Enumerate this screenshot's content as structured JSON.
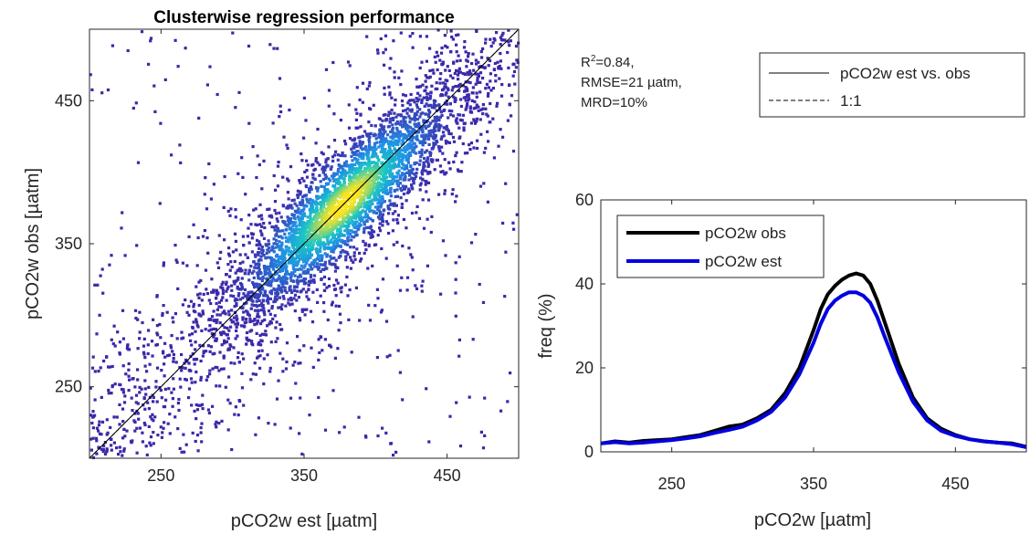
{
  "colors": {
    "scatter_low": "#3e26a8",
    "scatter_mid1": "#1f8fe6",
    "scatter_mid2": "#1ac7c2",
    "scatter_high": "#fbe51e",
    "obs_line": "#000000",
    "est_line": "#0000e0",
    "axis": "#262626"
  },
  "stats": {
    "r2_prefix": "R",
    "r2_sup": "2",
    "r2_suffix": "=0.84,",
    "rmse": "RMSE=21 µatm,",
    "mrd": "MRD=10%"
  },
  "chart_data": [
    {
      "type": "scatter",
      "title": "Clusterwise regression performance",
      "xlabel": "pCO2w est [µatm]",
      "ylabel": "pCO2w obs [µatm]",
      "xlim": [
        200,
        500
      ],
      "ylim": [
        200,
        500
      ],
      "xticks": [
        250,
        350,
        450
      ],
      "yticks": [
        250,
        350,
        450
      ],
      "density_colored": true,
      "density_center": [
        378,
        380
      ],
      "correlation": 0.84,
      "series": [
        {
          "name": "pCO2w est vs. obs",
          "kind": "line",
          "style": "solid",
          "x": [
            200,
            500
          ],
          "y": [
            200,
            500
          ]
        },
        {
          "name": "1:1",
          "kind": "line",
          "style": "dashed",
          "x": [
            200,
            500
          ],
          "y": [
            200,
            500
          ]
        }
      ],
      "legend": {
        "position": "outside-top-right",
        "entries": [
          "pCO2w est vs. obs",
          "1:1"
        ]
      }
    },
    {
      "type": "line",
      "xlabel": "pCO2w [µatm]",
      "ylabel": "freq (%)",
      "xlim": [
        200,
        500
      ],
      "ylim": [
        0,
        60
      ],
      "xticks": [
        250,
        350,
        450
      ],
      "yticks": [
        0,
        20,
        40,
        60
      ],
      "x": [
        200,
        210,
        220,
        230,
        240,
        250,
        260,
        270,
        280,
        290,
        300,
        310,
        320,
        330,
        340,
        350,
        355,
        360,
        365,
        370,
        375,
        380,
        385,
        390,
        395,
        400,
        410,
        420,
        430,
        440,
        450,
        460,
        470,
        480,
        490,
        500
      ],
      "series": [
        {
          "name": "pCO2w obs",
          "values": [
            2,
            2.5,
            2.2,
            2.6,
            2.8,
            3,
            3.5,
            4,
            5,
            6,
            6.5,
            8,
            10,
            14,
            20,
            29,
            34,
            37.5,
            39.5,
            41,
            42,
            42.5,
            42,
            40,
            36,
            31,
            21,
            13,
            8,
            5.5,
            4,
            3,
            2.5,
            2.2,
            2,
            1.2
          ]
        },
        {
          "name": "pCO2w est",
          "values": [
            2,
            2.3,
            2,
            2.2,
            2.5,
            2.8,
            3.2,
            3.7,
            4.5,
            5.2,
            6,
            7.5,
            9.5,
            13,
            18.5,
            26,
            30.5,
            34,
            36,
            37.2,
            38,
            38,
            37.2,
            35.5,
            32,
            27.5,
            19,
            12,
            7.5,
            5,
            3.8,
            3,
            2.5,
            2.2,
            1.8,
            1.1
          ]
        }
      ],
      "legend": {
        "position": "top-left",
        "entries": [
          "pCO2w obs",
          "pCO2w est"
        ]
      }
    }
  ]
}
